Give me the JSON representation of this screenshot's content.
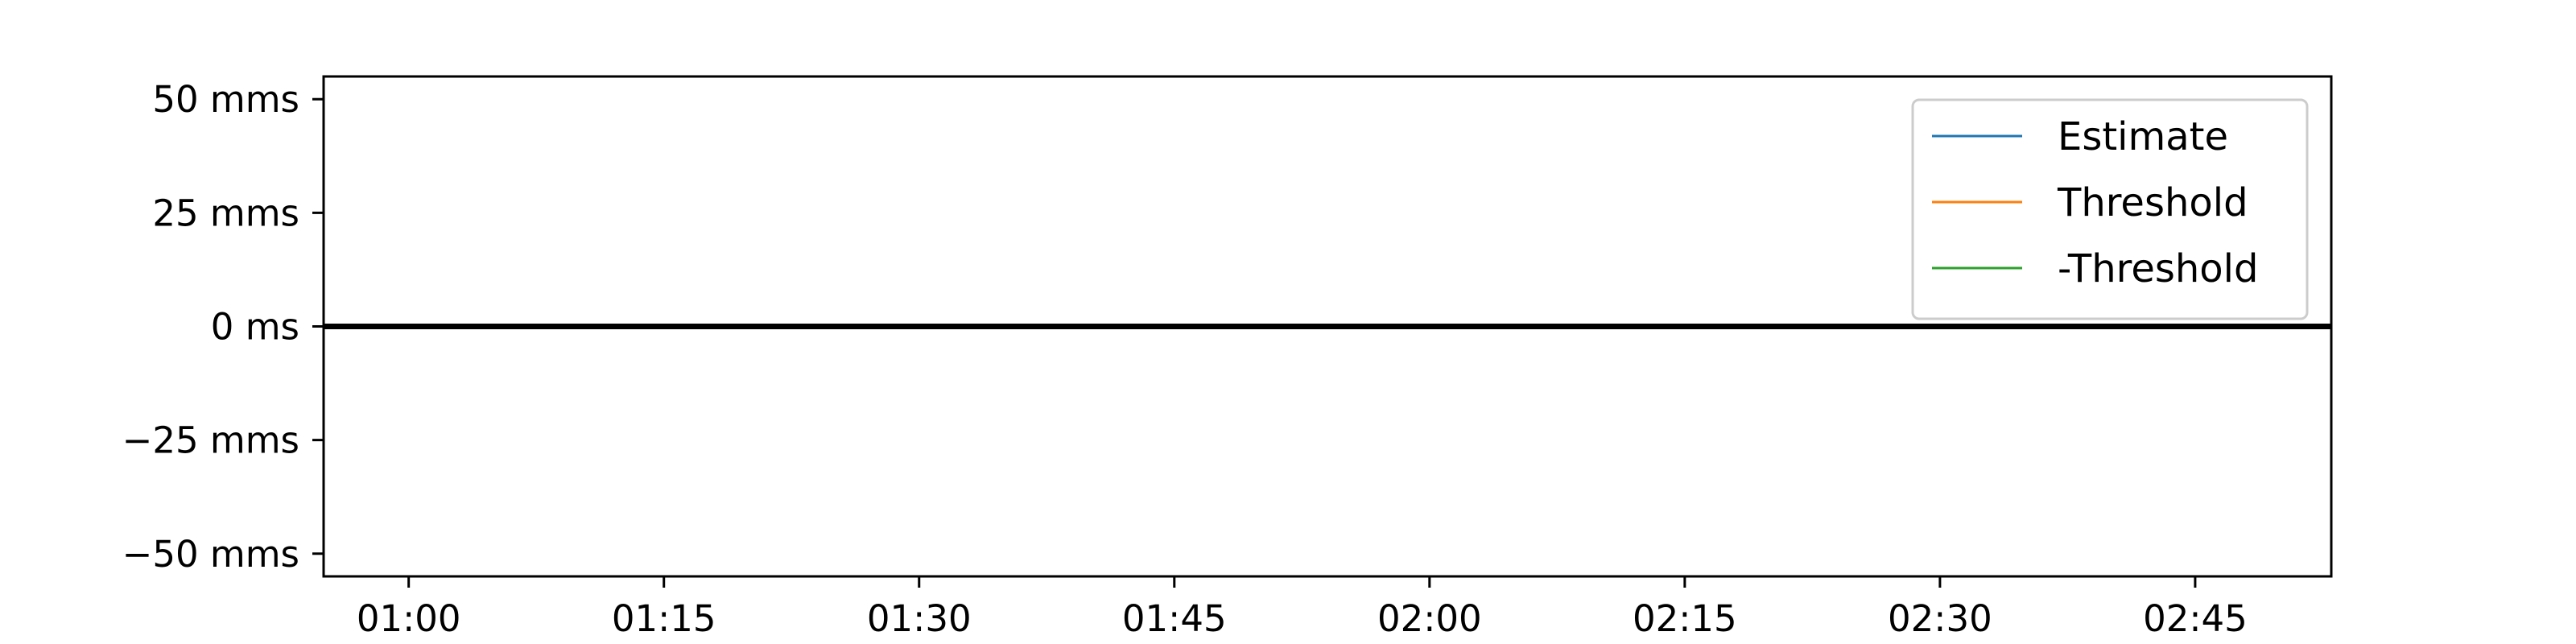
{
  "chart_data": {
    "type": "line",
    "title": "",
    "xlabel": "",
    "ylabel": "",
    "x_ticks": [
      "01:00",
      "01:15",
      "01:30",
      "01:45",
      "02:00",
      "02:15",
      "02:30",
      "02:45"
    ],
    "y_ticks": [
      {
        "value": 50,
        "label": "50 mms"
      },
      {
        "value": 25,
        "label": "25 mms"
      },
      {
        "value": 0,
        "label": "0 ms"
      },
      {
        "value": -25,
        "label": "−25 mms"
      },
      {
        "value": -50,
        "label": "−50 mms"
      }
    ],
    "xlim": [
      "00:55",
      "02:53"
    ],
    "ylim": [
      -55,
      55
    ],
    "grid": false,
    "legend_position": "top-right",
    "series": [
      {
        "name": "Estimate",
        "color": "#1f77b4",
        "x": [],
        "y": []
      },
      {
        "name": "Threshold",
        "color": "#ff7f0e",
        "x": [],
        "y": []
      },
      {
        "name": "-Threshold",
        "color": "#2ca02c",
        "x": [],
        "y": []
      }
    ],
    "reference_line": {
      "y": 0,
      "color": "#000000"
    }
  }
}
